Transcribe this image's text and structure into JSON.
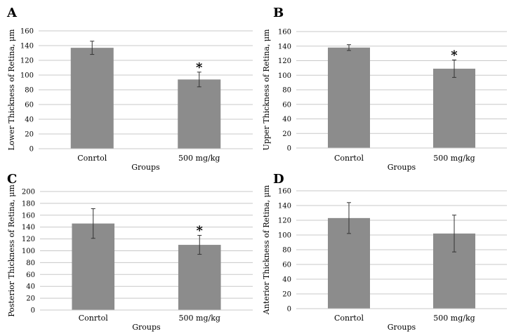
{
  "chart_data": [
    {
      "type": "bar",
      "panel_label": "A",
      "categories": [
        "Conrtol",
        "500 mg/kg"
      ],
      "values": [
        137,
        94
      ],
      "errors": [
        9,
        10
      ],
      "markers": [
        "",
        "*"
      ],
      "xlabel": "Groups",
      "ylabel": "Lower Thickness of Retina, μm",
      "ylim": [
        0,
        160
      ],
      "yticks": [
        0,
        20,
        40,
        60,
        80,
        100,
        120,
        140,
        160
      ],
      "grid": true,
      "bar_color": "#8c8c8c"
    },
    {
      "type": "bar",
      "panel_label": "B",
      "categories": [
        "Conrtol",
        "500 mg/kg"
      ],
      "values": [
        138,
        109
      ],
      "errors": [
        4,
        12
      ],
      "markers": [
        "",
        "*"
      ],
      "xlabel": "Groups",
      "ylabel": "Upper Thickness of Retina, μm",
      "ylim": [
        0,
        160
      ],
      "yticks": [
        0,
        20,
        40,
        60,
        80,
        100,
        120,
        140,
        160
      ],
      "grid": true,
      "bar_color": "#8c8c8c"
    },
    {
      "type": "bar",
      "panel_label": "C",
      "categories": [
        "Conrtol",
        "500 mg/kg"
      ],
      "values": [
        146,
        110
      ],
      "errors": [
        25,
        16
      ],
      "markers": [
        "",
        "*"
      ],
      "xlabel": "Groups",
      "ylabel": "Posterior Thickness of Retina, μm",
      "ylim": [
        0,
        200
      ],
      "yticks": [
        0,
        20,
        40,
        60,
        80,
        100,
        120,
        140,
        160,
        180,
        200
      ],
      "grid": true,
      "bar_color": "#8c8c8c"
    },
    {
      "type": "bar",
      "panel_label": "D",
      "categories": [
        "Conrtol",
        "500 mg/kg"
      ],
      "values": [
        123,
        102
      ],
      "errors": [
        21,
        25
      ],
      "markers": [
        "",
        ""
      ],
      "xlabel": "Groups",
      "ylabel": "Anterior Thickness of Retina, μm",
      "ylim": [
        0,
        160
      ],
      "yticks": [
        0,
        20,
        40,
        60,
        80,
        100,
        120,
        140,
        160
      ],
      "grid": true,
      "bar_color": "#8c8c8c"
    }
  ]
}
